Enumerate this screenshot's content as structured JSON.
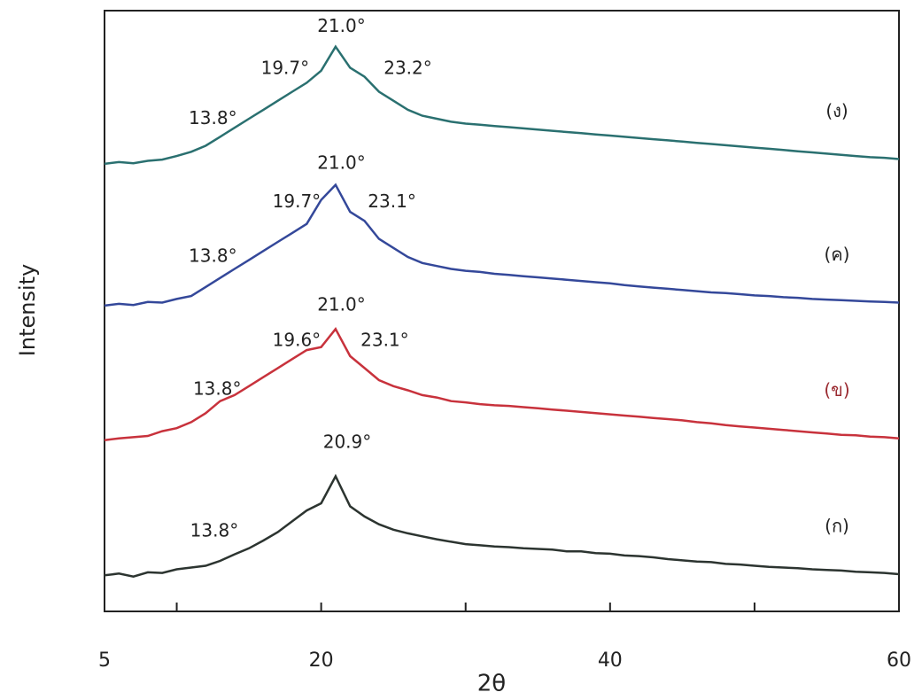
{
  "chart_data": {
    "type": "line",
    "xlabel": "2θ",
    "ylabel": "Intensity",
    "xlim": [
      5,
      60
    ],
    "ylim": [
      0,
      100
    ],
    "xticks": [
      5,
      20,
      40,
      60
    ],
    "xminor_ticks": [
      10,
      30,
      50
    ],
    "x": [
      5,
      6,
      7,
      8,
      9,
      10,
      11,
      12,
      13,
      14,
      15,
      16,
      17,
      18,
      19,
      20,
      21,
      22,
      23,
      24,
      25,
      26,
      27,
      28,
      29,
      30,
      31,
      32,
      33,
      34,
      35,
      36,
      37,
      38,
      39,
      40,
      41,
      42,
      43,
      44,
      45,
      46,
      47,
      48,
      49,
      50,
      51,
      52,
      53,
      54,
      55,
      56,
      57,
      58,
      59,
      60
    ],
    "series": [
      {
        "name": "(ก)",
        "color": "#2c3430",
        "label_color": "#222222",
        "values": [
          6.0,
          6.3,
          5.8,
          6.5,
          6.4,
          7.0,
          7.3,
          7.6,
          8.4,
          9.5,
          10.5,
          11.8,
          13.2,
          15.0,
          16.8,
          18.0,
          22.5,
          17.5,
          15.8,
          14.5,
          13.6,
          13.0,
          12.5,
          12.0,
          11.6,
          11.2,
          11.0,
          10.8,
          10.7,
          10.5,
          10.4,
          10.3,
          10.0,
          10.0,
          9.7,
          9.6,
          9.3,
          9.2,
          9.0,
          8.7,
          8.5,
          8.3,
          8.2,
          7.9,
          7.8,
          7.6,
          7.4,
          7.3,
          7.2,
          7.0,
          6.9,
          6.8,
          6.6,
          6.5,
          6.4,
          6.2
        ]
      },
      {
        "name": "(ข)",
        "color": "#c8323c",
        "label_color": "#9a2a30",
        "values": [
          28.5,
          28.8,
          29.0,
          29.2,
          30.0,
          30.5,
          31.5,
          33.0,
          35.0,
          36.0,
          37.5,
          39.0,
          40.5,
          42.0,
          43.5,
          44.0,
          47.0,
          42.5,
          40.5,
          38.5,
          37.5,
          36.8,
          36.0,
          35.6,
          35.0,
          34.8,
          34.5,
          34.3,
          34.2,
          34.0,
          33.8,
          33.6,
          33.4,
          33.2,
          33.0,
          32.8,
          32.6,
          32.4,
          32.2,
          32.0,
          31.8,
          31.5,
          31.3,
          31.0,
          30.8,
          30.6,
          30.4,
          30.2,
          30.0,
          29.8,
          29.6,
          29.4,
          29.3,
          29.1,
          29.0,
          28.8
        ]
      },
      {
        "name": "(ค)",
        "color": "#34489a",
        "label_color": "#222222",
        "values": [
          50.9,
          51.2,
          51.0,
          51.5,
          51.4,
          52.0,
          52.5,
          54.0,
          55.5,
          57.0,
          58.5,
          60.0,
          61.5,
          63.0,
          64.5,
          68.5,
          71.0,
          66.5,
          65.0,
          62.0,
          60.5,
          59.0,
          58.0,
          57.5,
          57.0,
          56.7,
          56.5,
          56.2,
          56.0,
          55.8,
          55.6,
          55.4,
          55.2,
          55.0,
          54.8,
          54.6,
          54.3,
          54.1,
          53.9,
          53.7,
          53.5,
          53.3,
          53.1,
          53.0,
          52.8,
          52.6,
          52.5,
          52.3,
          52.2,
          52.0,
          51.9,
          51.8,
          51.7,
          51.6,
          51.5,
          51.4
        ]
      },
      {
        "name": "(ง)",
        "color": "#2a7070",
        "label_color": "#222222",
        "values": [
          74.5,
          74.8,
          74.6,
          75.0,
          75.2,
          75.8,
          76.5,
          77.5,
          79.0,
          80.5,
          82.0,
          83.5,
          85.0,
          86.5,
          88.0,
          90.0,
          94.0,
          90.5,
          89.0,
          86.5,
          85.0,
          83.5,
          82.5,
          82.0,
          81.5,
          81.2,
          81.0,
          80.8,
          80.6,
          80.4,
          80.2,
          80.0,
          79.8,
          79.6,
          79.4,
          79.2,
          79.0,
          78.8,
          78.6,
          78.4,
          78.2,
          78.0,
          77.8,
          77.6,
          77.4,
          77.2,
          77.0,
          76.8,
          76.6,
          76.4,
          76.2,
          76.0,
          75.8,
          75.6,
          75.5,
          75.3
        ]
      }
    ],
    "annotations": [
      {
        "text": "20.9°",
        "x": 21.8,
        "y": 28.0
      },
      {
        "text": "13.8°",
        "x": 12.6,
        "y": 13.3
      },
      {
        "text": "21.0°",
        "x": 21.4,
        "y": 50.9
      },
      {
        "text": "19.6°",
        "x": 18.3,
        "y": 45.0
      },
      {
        "text": "23.1°",
        "x": 24.4,
        "y": 45.0
      },
      {
        "text": "13.8°",
        "x": 12.8,
        "y": 36.9
      },
      {
        "text": "21.0°",
        "x": 21.4,
        "y": 74.5
      },
      {
        "text": "19.7°",
        "x": 18.3,
        "y": 68.1
      },
      {
        "text": "23.1°",
        "x": 24.9,
        "y": 68.1
      },
      {
        "text": "13.8°",
        "x": 12.5,
        "y": 59.0
      },
      {
        "text": "21.0°",
        "x": 21.4,
        "y": 97.3
      },
      {
        "text": "19.7°",
        "x": 17.5,
        "y": 90.3
      },
      {
        "text": "23.2°",
        "x": 26.0,
        "y": 90.3
      },
      {
        "text": "13.8°",
        "x": 12.5,
        "y": 81.9
      }
    ]
  }
}
